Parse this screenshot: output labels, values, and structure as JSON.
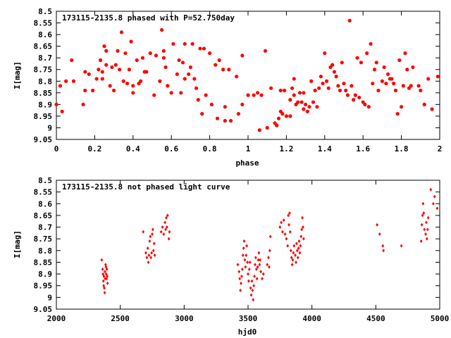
{
  "chart_data": [
    {
      "type": "scatter",
      "title": "173115-2135.8 phased with P=52.750day",
      "xlabel": "phase",
      "ylabel": "I[mag]",
      "xlim": [
        0,
        2
      ],
      "ylim": [
        9.05,
        8.5
      ],
      "y_inverted": true,
      "xticks": [
        "0",
        "0.2",
        "0.4",
        "0.6",
        "0.8",
        "1",
        "1.2",
        "1.4",
        "1.6",
        "1.8",
        "2"
      ],
      "yticks": [
        "8.5",
        "8.55",
        "8.6",
        "8.65",
        "8.7",
        "8.75",
        "8.8",
        "8.85",
        "8.9",
        "8.95",
        "9",
        "9.05"
      ],
      "grid": false,
      "legend": "none",
      "marker_color": "#ff0000",
      "points": [
        [
          0.0,
          8.9
        ],
        [
          0.02,
          8.82
        ],
        [
          0.03,
          8.93
        ],
        [
          0.05,
          8.8
        ],
        [
          0.08,
          8.71
        ],
        [
          0.09,
          8.8
        ],
        [
          0.14,
          8.9
        ],
        [
          0.15,
          8.84
        ],
        [
          0.15,
          8.76
        ],
        [
          0.17,
          8.77
        ],
        [
          0.19,
          8.84
        ],
        [
          0.21,
          8.79
        ],
        [
          0.22,
          8.75
        ],
        [
          0.23,
          8.71
        ],
        [
          0.24,
          8.79
        ],
        [
          0.24,
          8.76
        ],
        [
          0.25,
          8.65
        ],
        [
          0.26,
          8.67
        ],
        [
          0.26,
          8.73
        ],
        [
          0.28,
          8.82
        ],
        [
          0.29,
          8.74
        ],
        [
          0.3,
          8.84
        ],
        [
          0.31,
          8.73
        ],
        [
          0.32,
          8.67
        ],
        [
          0.33,
          8.75
        ],
        [
          0.34,
          8.59
        ],
        [
          0.35,
          8.8
        ],
        [
          0.36,
          8.68
        ],
        [
          0.37,
          8.81
        ],
        [
          0.38,
          8.75
        ],
        [
          0.39,
          8.63
        ],
        [
          0.4,
          8.82
        ],
        [
          0.4,
          8.85
        ],
        [
          0.42,
          8.71
        ],
        [
          0.43,
          8.81
        ],
        [
          0.44,
          8.8
        ],
        [
          0.45,
          8.7
        ],
        [
          0.46,
          8.76
        ],
        [
          0.47,
          8.76
        ],
        [
          0.49,
          8.68
        ],
        [
          0.51,
          8.86
        ],
        [
          0.52,
          8.69
        ],
        [
          0.54,
          8.8
        ],
        [
          0.55,
          8.58
        ],
        [
          0.56,
          8.67
        ],
        [
          0.56,
          8.7
        ],
        [
          0.57,
          8.74
        ],
        [
          0.58,
          8.82
        ],
        [
          0.6,
          8.85
        ],
        [
          0.61,
          8.64
        ],
        [
          0.63,
          8.77
        ],
        [
          0.64,
          8.71
        ],
        [
          0.65,
          8.85
        ],
        [
          0.66,
          8.72
        ],
        [
          0.67,
          8.79
        ],
        [
          0.67,
          8.64
        ],
        [
          0.69,
          8.77
        ],
        [
          0.7,
          8.74
        ],
        [
          0.71,
          8.64
        ],
        [
          0.72,
          8.79
        ],
        [
          0.73,
          8.83
        ],
        [
          0.74,
          8.88
        ],
        [
          0.75,
          8.66
        ],
        [
          0.76,
          8.94
        ],
        [
          0.77,
          8.66
        ],
        [
          0.78,
          8.86
        ],
        [
          0.8,
          8.68
        ],
        [
          0.81,
          8.9
        ],
        [
          0.83,
          8.73
        ],
        [
          0.84,
          8.96
        ],
        [
          0.85,
          8.71
        ],
        [
          0.87,
          8.75
        ],
        [
          0.88,
          8.91
        ],
        [
          0.88,
          8.97
        ],
        [
          0.9,
          8.75
        ],
        [
          0.91,
          8.97
        ],
        [
          0.94,
          8.78
        ],
        [
          0.95,
          8.94
        ],
        [
          0.97,
          8.69
        ],
        [
          0.97,
          8.9
        ],
        [
          1.0,
          8.86
        ],
        [
          1.03,
          8.86
        ],
        [
          1.05,
          8.85
        ],
        [
          1.06,
          9.01
        ],
        [
          1.07,
          8.86
        ],
        [
          1.09,
          8.67
        ],
        [
          1.1,
          9.0
        ],
        [
          1.12,
          8.83
        ],
        [
          1.14,
          8.98
        ],
        [
          1.15,
          8.99
        ],
        [
          1.16,
          8.96
        ],
        [
          1.17,
          8.93
        ],
        [
          1.17,
          8.84
        ],
        [
          1.18,
          8.94
        ],
        [
          1.19,
          8.84
        ],
        [
          1.2,
          8.95
        ],
        [
          1.22,
          8.95
        ],
        [
          1.22,
          8.88
        ],
        [
          1.23,
          8.83
        ],
        [
          1.24,
          8.79
        ],
        [
          1.24,
          8.86
        ],
        [
          1.25,
          8.9
        ],
        [
          1.26,
          8.89
        ],
        [
          1.27,
          8.85
        ],
        [
          1.28,
          8.89
        ],
        [
          1.29,
          8.92
        ],
        [
          1.29,
          8.85
        ],
        [
          1.3,
          8.9
        ],
        [
          1.31,
          8.93
        ],
        [
          1.32,
          8.91
        ],
        [
          1.33,
          8.8
        ],
        [
          1.34,
          8.89
        ],
        [
          1.35,
          8.84
        ],
        [
          1.36,
          8.91
        ],
        [
          1.37,
          8.83
        ],
        [
          1.38,
          8.78
        ],
        [
          1.39,
          8.81
        ],
        [
          1.4,
          8.68
        ],
        [
          1.41,
          8.8
        ],
        [
          1.42,
          8.83
        ],
        [
          1.43,
          8.74
        ],
        [
          1.44,
          8.73
        ],
        [
          1.45,
          8.76
        ],
        [
          1.46,
          8.78
        ],
        [
          1.47,
          8.82
        ],
        [
          1.48,
          8.84
        ],
        [
          1.49,
          8.72
        ],
        [
          1.5,
          8.81
        ],
        [
          1.51,
          8.84
        ],
        [
          1.52,
          8.86
        ],
        [
          1.53,
          8.54
        ],
        [
          1.54,
          8.82
        ],
        [
          1.55,
          8.88
        ],
        [
          1.56,
          8.86
        ],
        [
          1.57,
          8.7
        ],
        [
          1.58,
          8.87
        ],
        [
          1.59,
          8.72
        ],
        [
          1.6,
          8.89
        ],
        [
          1.61,
          8.9
        ],
        [
          1.62,
          8.68
        ],
        [
          1.63,
          8.91
        ],
        [
          1.64,
          8.64
        ],
        [
          1.65,
          8.81
        ],
        [
          1.66,
          8.75
        ],
        [
          1.67,
          8.72
        ],
        [
          1.68,
          8.84
        ],
        [
          1.7,
          8.8
        ],
        [
          1.71,
          8.74
        ],
        [
          1.72,
          8.81
        ],
        [
          1.73,
          8.77
        ],
        [
          1.74,
          8.79
        ],
        [
          1.75,
          8.79
        ],
        [
          1.76,
          8.81
        ],
        [
          1.77,
          8.84
        ],
        [
          1.78,
          8.94
        ],
        [
          1.79,
          8.71
        ],
        [
          1.8,
          8.91
        ],
        [
          1.81,
          8.82
        ],
        [
          1.82,
          8.68
        ],
        [
          1.83,
          8.75
        ],
        [
          1.84,
          8.83
        ],
        [
          1.85,
          8.82
        ],
        [
          1.86,
          8.74
        ],
        [
          1.89,
          8.82
        ],
        [
          1.9,
          8.84
        ],
        [
          1.92,
          8.9
        ],
        [
          1.94,
          8.79
        ],
        [
          1.96,
          8.92
        ],
        [
          1.99,
          8.78
        ]
      ]
    },
    {
      "type": "scatter",
      "title": "173115-2135.8 not phased light curve",
      "xlabel": "hjd0",
      "ylabel": "I[mag]",
      "xlim": [
        2000,
        5000
      ],
      "ylim": [
        9.05,
        8.5
      ],
      "y_inverted": true,
      "xticks": [
        "2000",
        "2500",
        "3000",
        "3500",
        "4000",
        "4500",
        "5000"
      ],
      "yticks": [
        "8.5",
        "8.55",
        "8.6",
        "8.65",
        "8.7",
        "8.75",
        "8.8",
        "8.85",
        "8.9",
        "8.95",
        "9",
        "9.05"
      ],
      "grid": false,
      "legend": "none",
      "marker_color": "#ff0000",
      "points": [
        [
          2355,
          8.84
        ],
        [
          2362,
          8.88
        ],
        [
          2365,
          8.9
        ],
        [
          2368,
          8.93
        ],
        [
          2370,
          8.95
        ],
        [
          2372,
          8.91
        ],
        [
          2375,
          8.96
        ],
        [
          2378,
          8.98
        ],
        [
          2380,
          8.89
        ],
        [
          2382,
          8.92
        ],
        [
          2385,
          8.86
        ],
        [
          2388,
          8.87
        ],
        [
          2390,
          8.9
        ],
        [
          2393,
          8.92
        ],
        [
          2395,
          8.88
        ],
        [
          2398,
          8.91
        ],
        [
          2400,
          8.94
        ],
        [
          2680,
          8.72
        ],
        [
          2700,
          8.81
        ],
        [
          2708,
          8.83
        ],
        [
          2715,
          8.79
        ],
        [
          2720,
          8.85
        ],
        [
          2725,
          8.82
        ],
        [
          2730,
          8.76
        ],
        [
          2735,
          8.74
        ],
        [
          2740,
          8.83
        ],
        [
          2745,
          8.81
        ],
        [
          2750,
          8.73
        ],
        [
          2755,
          8.71
        ],
        [
          2760,
          8.8
        ],
        [
          2765,
          8.77
        ],
        [
          2770,
          8.82
        ],
        [
          2820,
          8.72
        ],
        [
          2830,
          8.7
        ],
        [
          2840,
          8.73
        ],
        [
          2850,
          8.68
        ],
        [
          2855,
          8.71
        ],
        [
          2860,
          8.66
        ],
        [
          2865,
          8.7
        ],
        [
          2870,
          8.65
        ],
        [
          2880,
          8.75
        ],
        [
          2885,
          8.72
        ],
        [
          3420,
          8.86
        ],
        [
          3430,
          8.89
        ],
        [
          3435,
          8.92
        ],
        [
          3440,
          8.97
        ],
        [
          3445,
          8.94
        ],
        [
          3450,
          8.91
        ],
        [
          3455,
          8.88
        ],
        [
          3460,
          8.82
        ],
        [
          3465,
          8.79
        ],
        [
          3470,
          8.76
        ],
        [
          3475,
          8.84
        ],
        [
          3480,
          8.87
        ],
        [
          3485,
          8.82
        ],
        [
          3490,
          8.78
        ],
        [
          3495,
          8.85
        ],
        [
          3500,
          8.9
        ],
        [
          3505,
          8.93
        ],
        [
          3510,
          8.88
        ],
        [
          3515,
          8.85
        ],
        [
          3520,
          8.96
        ],
        [
          3525,
          8.99
        ],
        [
          3530,
          8.93
        ],
        [
          3535,
          8.97
        ],
        [
          3540,
          9.01
        ],
        [
          3545,
          8.95
        ],
        [
          3550,
          8.91
        ],
        [
          3555,
          8.86
        ],
        [
          3560,
          8.83
        ],
        [
          3565,
          8.88
        ],
        [
          3570,
          8.92
        ],
        [
          3575,
          8.87
        ],
        [
          3580,
          8.84
        ],
        [
          3585,
          8.81
        ],
        [
          3590,
          8.86
        ],
        [
          3595,
          8.84
        ],
        [
          3600,
          8.89
        ],
        [
          3610,
          8.92
        ],
        [
          3620,
          8.9
        ],
        [
          3650,
          8.86
        ],
        [
          3660,
          8.83
        ],
        [
          3665,
          8.87
        ],
        [
          3670,
          8.8
        ],
        [
          3675,
          8.74
        ],
        [
          3750,
          8.7
        ],
        [
          3760,
          8.68
        ],
        [
          3770,
          8.72
        ],
        [
          3780,
          8.67
        ],
        [
          3790,
          8.73
        ],
        [
          3800,
          8.75
        ],
        [
          3810,
          8.78
        ],
        [
          3815,
          8.65
        ],
        [
          3820,
          8.69
        ],
        [
          3825,
          8.64
        ],
        [
          3830,
          8.72
        ],
        [
          3835,
          8.8
        ],
        [
          3840,
          8.83
        ],
        [
          3845,
          8.86
        ],
        [
          3850,
          8.84
        ],
        [
          3855,
          8.81
        ],
        [
          3860,
          8.78
        ],
        [
          3870,
          8.82
        ],
        [
          3875,
          8.85
        ],
        [
          3880,
          8.77
        ],
        [
          3885,
          8.8
        ],
        [
          3890,
          8.83
        ],
        [
          3895,
          8.79
        ],
        [
          3900,
          8.76
        ],
        [
          3905,
          8.81
        ],
        [
          3910,
          8.78
        ],
        [
          3915,
          8.74
        ],
        [
          3920,
          8.71
        ],
        [
          3925,
          8.66
        ],
        [
          3930,
          8.7
        ],
        [
          3935,
          8.75
        ],
        [
          4510,
          8.69
        ],
        [
          4530,
          8.73
        ],
        [
          4555,
          8.78
        ],
        [
          4560,
          8.8
        ],
        [
          4700,
          8.78
        ],
        [
          4855,
          8.76
        ],
        [
          4860,
          8.69
        ],
        [
          4865,
          8.65
        ],
        [
          4870,
          8.6
        ],
        [
          4875,
          8.64
        ],
        [
          4880,
          8.71
        ],
        [
          4890,
          8.73
        ],
        [
          4895,
          8.68
        ],
        [
          4900,
          8.75
        ],
        [
          4905,
          8.71
        ],
        [
          4910,
          8.66
        ],
        [
          4930,
          8.54
        ],
        [
          4950,
          8.6
        ],
        [
          4960,
          8.57
        ],
        [
          4980,
          8.62
        ]
      ]
    }
  ]
}
